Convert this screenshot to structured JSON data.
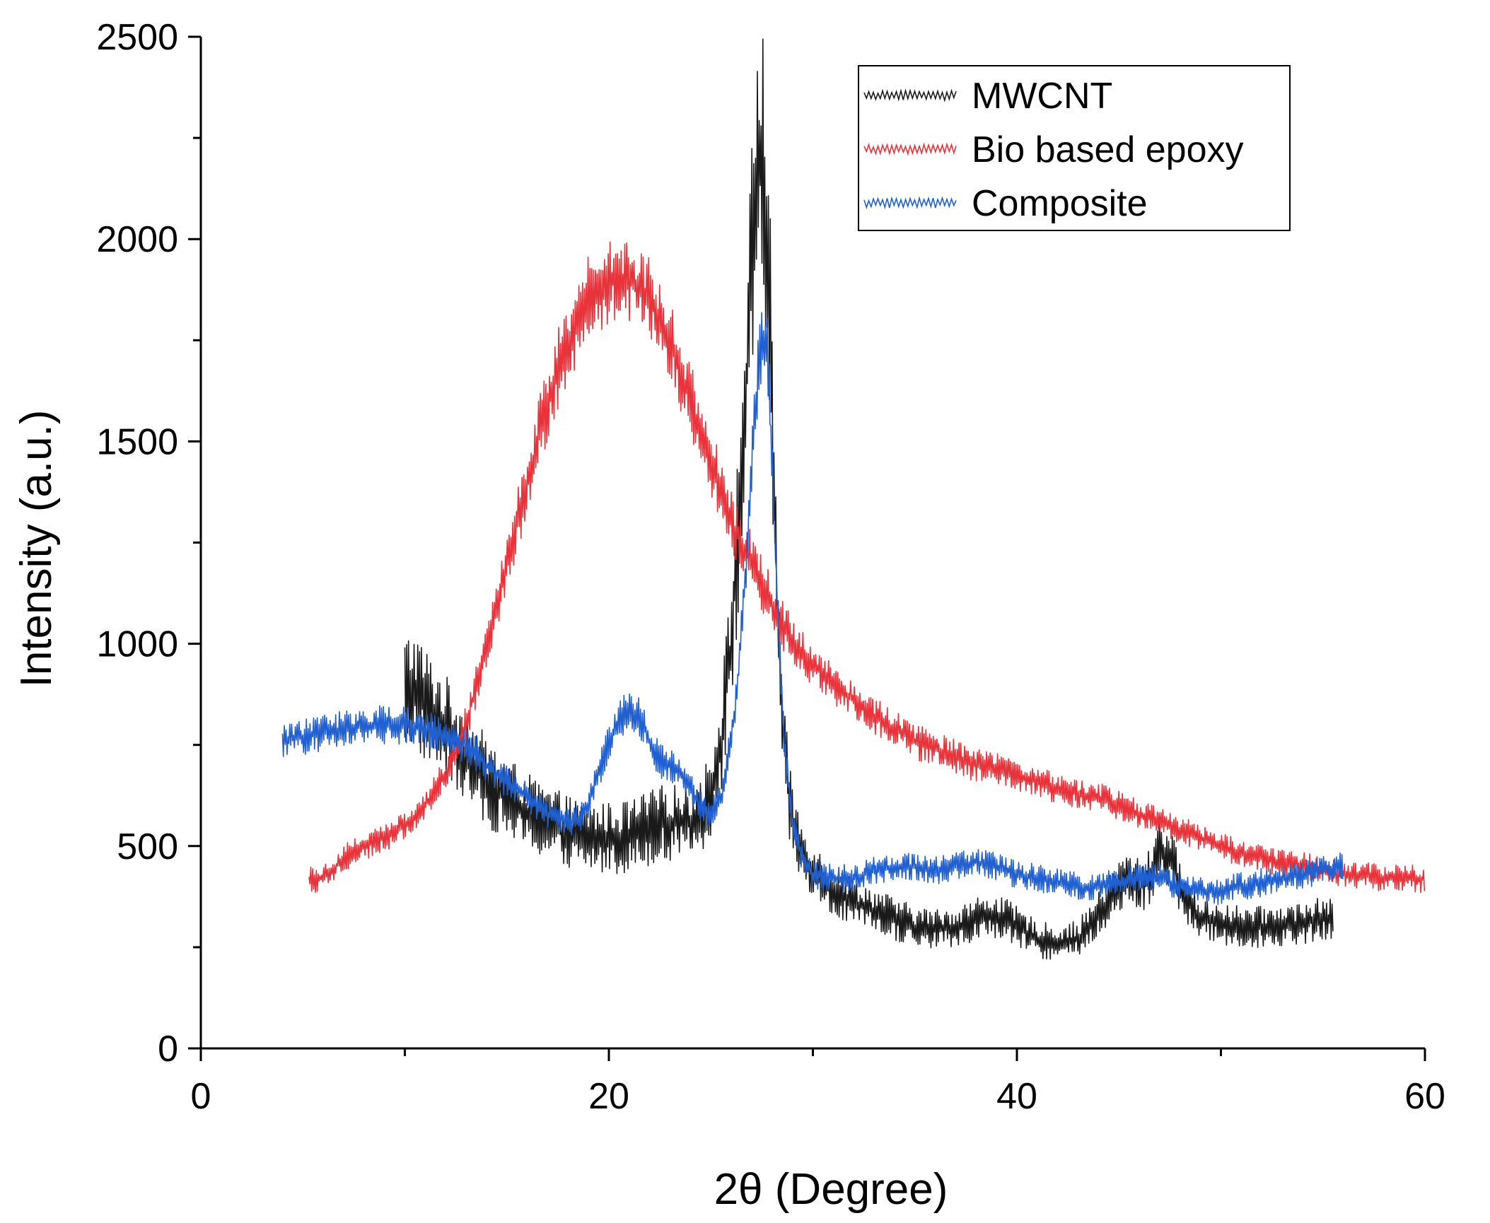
{
  "chart_data": {
    "type": "line",
    "title": "",
    "xlabel": "2θ (Degree)",
    "ylabel": "Intensity (a.u.)",
    "xlim": [
      0,
      60
    ],
    "ylim": [
      0,
      2500
    ],
    "xticks": [
      0,
      20,
      40,
      60
    ],
    "xticks_minor": [
      10,
      30,
      50
    ],
    "yticks": [
      0,
      500,
      1000,
      1500,
      2000,
      2500
    ],
    "yticks_minor": [
      250,
      750,
      1250,
      1750,
      2250
    ],
    "grid": false,
    "legend_position": "top-right",
    "series": [
      {
        "name": "MWCNT",
        "color": "#1a1a1a",
        "x": [
          10,
          10.5,
          11,
          11.5,
          12,
          12.5,
          13,
          13.5,
          14,
          14.5,
          15,
          15.5,
          16,
          16.5,
          17,
          17.5,
          18,
          18.5,
          19,
          19.5,
          20,
          20.5,
          21,
          21.5,
          22,
          22.5,
          23,
          23.5,
          24,
          24.5,
          25,
          25.5,
          26,
          26.3,
          26.6,
          26.9,
          27.2,
          27.4,
          27.6,
          27.8,
          28,
          28.2,
          28.5,
          28.8,
          29.2,
          29.6,
          30,
          30.5,
          31,
          32,
          33,
          34,
          35,
          36,
          37,
          38,
          39,
          40,
          41,
          42,
          43,
          44,
          45,
          45.5,
          46,
          46.5,
          47,
          47.5,
          48,
          48.5,
          49,
          50,
          51,
          52,
          53,
          54,
          55,
          55.5
        ],
        "y": [
          880,
          890,
          850,
          820,
          790,
          760,
          720,
          690,
          660,
          640,
          620,
          600,
          580,
          570,
          555,
          545,
          535,
          525,
          520,
          520,
          520,
          520,
          525,
          535,
          545,
          555,
          560,
          560,
          560,
          580,
          630,
          760,
          1000,
          1250,
          1500,
          1800,
          2100,
          2200,
          2150,
          1950,
          1600,
          1150,
          800,
          620,
          520,
          470,
          440,
          410,
          390,
          360,
          340,
          320,
          300,
          295,
          300,
          320,
          330,
          300,
          270,
          260,
          270,
          330,
          400,
          420,
          400,
          420,
          500,
          470,
          400,
          350,
          320,
          310,
          300,
          300,
          305,
          310,
          320,
          315
        ]
      },
      {
        "name": "Bio based epoxy",
        "color": "#e8333b",
        "x": [
          5.3,
          6,
          7,
          8,
          9,
          10,
          11,
          12,
          13,
          14,
          15,
          16,
          17,
          18,
          19,
          20,
          21,
          22,
          23,
          24,
          25,
          26,
          27,
          28,
          29,
          30,
          31,
          32,
          33,
          34,
          35,
          36,
          37,
          38,
          39,
          40,
          41,
          42,
          43,
          44,
          45,
          46,
          47,
          48,
          49,
          50,
          51,
          52,
          53,
          54,
          55,
          56,
          57,
          58,
          59,
          60
        ],
        "y": [
          420,
          420,
          470,
          500,
          520,
          550,
          600,
          680,
          800,
          1000,
          1200,
          1400,
          1600,
          1750,
          1850,
          1900,
          1900,
          1850,
          1750,
          1600,
          1450,
          1300,
          1200,
          1100,
          1000,
          950,
          900,
          860,
          820,
          790,
          760,
          740,
          720,
          700,
          690,
          670,
          660,
          640,
          630,
          620,
          600,
          580,
          560,
          540,
          520,
          500,
          480,
          470,
          460,
          450,
          440,
          430,
          430,
          420,
          420,
          420
        ]
      },
      {
        "name": "Composite",
        "color": "#2060d0",
        "x": [
          4,
          5,
          6,
          7,
          8,
          9,
          10,
          10.5,
          11,
          11.5,
          12,
          12.5,
          13,
          13.5,
          14,
          14.5,
          15,
          15.5,
          16,
          16.5,
          17,
          17.5,
          18,
          18.5,
          19,
          19.5,
          20,
          20.5,
          21,
          21.5,
          22,
          22.5,
          23,
          23.5,
          24,
          24.5,
          25,
          25.5,
          26,
          26.3,
          26.6,
          26.9,
          27.2,
          27.5,
          27.8,
          28,
          28.3,
          28.6,
          29,
          29.5,
          30,
          31,
          32,
          33,
          34,
          35,
          36,
          37,
          38,
          39,
          40,
          41,
          42,
          43,
          44,
          45,
          46,
          47,
          48,
          49,
          50,
          51,
          52,
          53,
          54,
          55,
          56
        ],
        "y": [
          760,
          770,
          780,
          790,
          800,
          800,
          800,
          800,
          790,
          780,
          770,
          760,
          750,
          730,
          700,
          680,
          660,
          640,
          620,
          600,
          580,
          570,
          560,
          560,
          600,
          680,
          760,
          810,
          840,
          820,
          760,
          710,
          700,
          680,
          640,
          600,
          580,
          620,
          760,
          900,
          1100,
          1350,
          1600,
          1750,
          1700,
          1450,
          1050,
          750,
          560,
          470,
          430,
          420,
          420,
          440,
          450,
          450,
          440,
          450,
          460,
          450,
          430,
          420,
          410,
          400,
          400,
          410,
          420,
          420,
          400,
          390,
          390,
          400,
          410,
          420,
          430,
          440,
          450
        ]
      }
    ]
  }
}
